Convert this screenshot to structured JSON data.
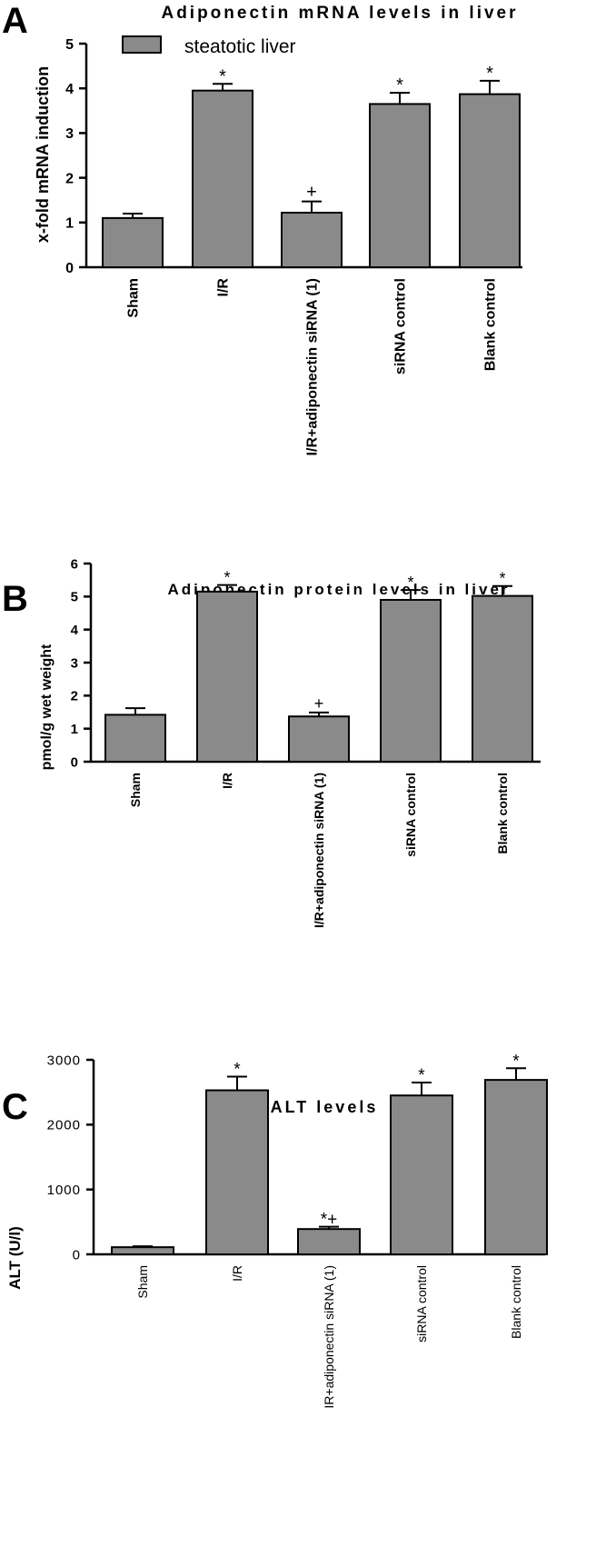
{
  "colors": {
    "bar": "#8a8a8a",
    "axis": "#000000",
    "background": "#ffffff"
  },
  "legend": {
    "label": "steatotic liver"
  },
  "chart_data": [
    {
      "panel": "A",
      "type": "bar",
      "title": "Adiponectin mRNA levels in liver",
      "ylabel": "x-fold mRNA induction",
      "xlabel": "",
      "categories": [
        "Sham",
        "I/R",
        "I/R+adiponectin siRNA (1)",
        "siRNA control",
        "Blank control"
      ],
      "series": [
        {
          "name": "steatotic liver",
          "values": [
            1.1,
            3.95,
            1.22,
            3.65,
            3.87
          ],
          "errors": [
            0.1,
            0.15,
            0.25,
            0.25,
            0.3
          ]
        }
      ],
      "significance": [
        "",
        "*",
        "+",
        "*",
        "*"
      ],
      "ylim": [
        0,
        5
      ],
      "yticks": [
        "0",
        "1",
        "2",
        "3",
        "4",
        "5"
      ],
      "grid": false,
      "legend_position": "top-left"
    },
    {
      "panel": "B",
      "type": "bar",
      "title": "Adiponectin protein levels in liver",
      "ylabel": "pmol/g wet weight",
      "xlabel": "",
      "categories": [
        "Sham",
        "I/R",
        "I/R+adiponectin siRNA (1)",
        "siRNA control",
        "Blank control"
      ],
      "series": [
        {
          "values": [
            1.42,
            5.15,
            1.37,
            4.9,
            5.02
          ],
          "errors": [
            0.2,
            0.2,
            0.12,
            0.3,
            0.3
          ]
        }
      ],
      "significance": [
        "",
        "*",
        "+",
        "*",
        "*"
      ],
      "ylim": [
        0,
        6
      ],
      "yticks": [
        "0",
        "1",
        "2",
        "3",
        "4",
        "5",
        "6"
      ],
      "grid": false
    },
    {
      "panel": "C",
      "type": "bar",
      "title": "ALT levels",
      "ylabel": "ALT (U/l)",
      "xlabel": "",
      "categories": [
        "Sham",
        "I/R",
        "IR+adiponectin siRNA (1)",
        "siRNA control",
        "Blank control"
      ],
      "series": [
        {
          "values": [
            110,
            2530,
            390,
            2450,
            2690
          ],
          "errors": [
            15,
            210,
            35,
            200,
            180
          ]
        }
      ],
      "significance": [
        "",
        "*",
        "*+",
        "*",
        "*"
      ],
      "ylim": [
        0,
        3000
      ],
      "yticks": [
        "0",
        "1000",
        "2000",
        "3000"
      ],
      "grid": false
    }
  ]
}
